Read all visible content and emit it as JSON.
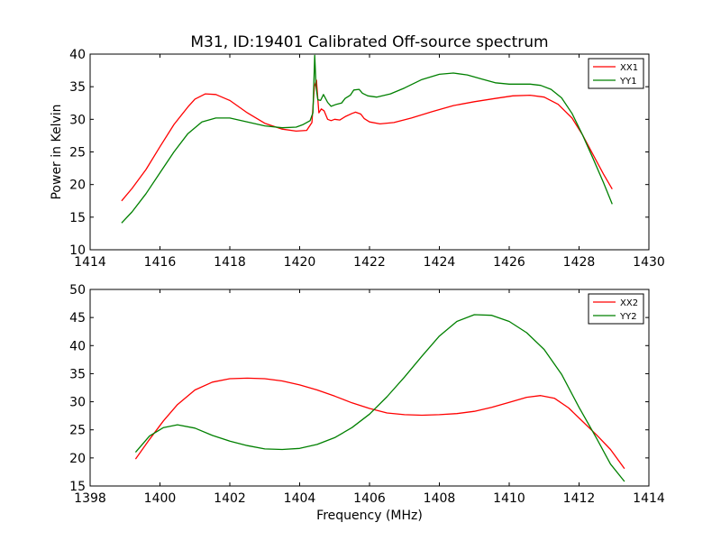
{
  "figure": {
    "title": "M31, ID:19401 Calibrated Off-source spectrum"
  },
  "chart_data": [
    {
      "type": "line",
      "title": "M31, ID:19401 Calibrated Off-source spectrum",
      "xlabel": "",
      "ylabel": "Power in Kelvin",
      "xlim": [
        1414,
        1430
      ],
      "ylim": [
        10,
        40
      ],
      "xticks": [
        1414,
        1416,
        1418,
        1420,
        1422,
        1424,
        1426,
        1428,
        1430
      ],
      "yticks": [
        10,
        15,
        20,
        25,
        30,
        35,
        40
      ],
      "grid": false,
      "legend": "top-right",
      "series": [
        {
          "name": "XX1",
          "color": "#ff0000",
          "points": [
            [
              1414.9,
              17.5
            ],
            [
              1415.2,
              19.4
            ],
            [
              1415.6,
              22.3
            ],
            [
              1416.0,
              25.8
            ],
            [
              1416.4,
              29.2
            ],
            [
              1416.8,
              31.9
            ],
            [
              1417.0,
              33.1
            ],
            [
              1417.3,
              33.9
            ],
            [
              1417.6,
              33.8
            ],
            [
              1418.0,
              32.9
            ],
            [
              1418.5,
              31.0
            ],
            [
              1419.0,
              29.4
            ],
            [
              1419.5,
              28.5
            ],
            [
              1419.9,
              28.2
            ],
            [
              1420.2,
              28.3
            ],
            [
              1420.35,
              29.5
            ],
            [
              1420.42,
              35.0
            ],
            [
              1420.48,
              36.0
            ],
            [
              1420.55,
              31.0
            ],
            [
              1420.62,
              31.6
            ],
            [
              1420.7,
              31.3
            ],
            [
              1420.8,
              30.0
            ],
            [
              1420.9,
              29.8
            ],
            [
              1421.0,
              30.0
            ],
            [
              1421.15,
              29.9
            ],
            [
              1421.3,
              30.4
            ],
            [
              1421.5,
              30.9
            ],
            [
              1421.6,
              31.1
            ],
            [
              1421.75,
              30.8
            ],
            [
              1421.85,
              30.1
            ],
            [
              1422.0,
              29.6
            ],
            [
              1422.3,
              29.3
            ],
            [
              1422.7,
              29.5
            ],
            [
              1423.2,
              30.2
            ],
            [
              1423.8,
              31.2
            ],
            [
              1424.4,
              32.1
            ],
            [
              1425.0,
              32.7
            ],
            [
              1425.6,
              33.2
            ],
            [
              1426.1,
              33.6
            ],
            [
              1426.6,
              33.7
            ],
            [
              1427.0,
              33.4
            ],
            [
              1427.4,
              32.3
            ],
            [
              1427.8,
              30.2
            ],
            [
              1428.1,
              27.6
            ],
            [
              1428.4,
              24.6
            ],
            [
              1428.7,
              21.6
            ],
            [
              1428.95,
              19.3
            ]
          ]
        },
        {
          "name": "YY1",
          "color": "#008000",
          "points": [
            [
              1414.9,
              14.1
            ],
            [
              1415.2,
              15.8
            ],
            [
              1415.6,
              18.6
            ],
            [
              1416.0,
              21.8
            ],
            [
              1416.4,
              25.0
            ],
            [
              1416.8,
              27.8
            ],
            [
              1417.2,
              29.6
            ],
            [
              1417.6,
              30.2
            ],
            [
              1418.0,
              30.2
            ],
            [
              1418.5,
              29.6
            ],
            [
              1419.0,
              29.0
            ],
            [
              1419.5,
              28.7
            ],
            [
              1419.9,
              28.8
            ],
            [
              1420.1,
              29.2
            ],
            [
              1420.3,
              29.8
            ],
            [
              1420.38,
              31.0
            ],
            [
              1420.43,
              39.8
            ],
            [
              1420.47,
              35.0
            ],
            [
              1420.52,
              33.0
            ],
            [
              1420.6,
              32.9
            ],
            [
              1420.68,
              33.8
            ],
            [
              1420.8,
              32.6
            ],
            [
              1420.9,
              32.0
            ],
            [
              1421.05,
              32.3
            ],
            [
              1421.2,
              32.5
            ],
            [
              1421.3,
              33.2
            ],
            [
              1421.45,
              33.7
            ],
            [
              1421.55,
              34.5
            ],
            [
              1421.7,
              34.6
            ],
            [
              1421.8,
              34.0
            ],
            [
              1421.95,
              33.6
            ],
            [
              1422.2,
              33.4
            ],
            [
              1422.6,
              33.9
            ],
            [
              1423.0,
              34.8
            ],
            [
              1423.5,
              36.1
            ],
            [
              1424.0,
              36.9
            ],
            [
              1424.4,
              37.1
            ],
            [
              1424.8,
              36.8
            ],
            [
              1425.2,
              36.2
            ],
            [
              1425.6,
              35.6
            ],
            [
              1426.0,
              35.4
            ],
            [
              1426.6,
              35.4
            ],
            [
              1426.9,
              35.2
            ],
            [
              1427.2,
              34.6
            ],
            [
              1427.5,
              33.3
            ],
            [
              1427.8,
              30.9
            ],
            [
              1428.1,
              27.6
            ],
            [
              1428.4,
              24.0
            ],
            [
              1428.7,
              20.3
            ],
            [
              1428.95,
              17.0
            ]
          ]
        }
      ]
    },
    {
      "type": "line",
      "title": "",
      "xlabel": "Frequency (MHz)",
      "ylabel": "",
      "xlim": [
        1398,
        1414
      ],
      "ylim": [
        15,
        50
      ],
      "xticks": [
        1398,
        1400,
        1402,
        1404,
        1406,
        1408,
        1410,
        1412,
        1414
      ],
      "yticks": [
        15,
        20,
        25,
        30,
        35,
        40,
        45,
        50
      ],
      "grid": false,
      "legend": "top-right",
      "series": [
        {
          "name": "XX2",
          "color": "#ff0000",
          "points": [
            [
              1399.3,
              19.8
            ],
            [
              1399.7,
              23.3
            ],
            [
              1400.1,
              26.6
            ],
            [
              1400.5,
              29.5
            ],
            [
              1401.0,
              32.1
            ],
            [
              1401.5,
              33.5
            ],
            [
              1402.0,
              34.1
            ],
            [
              1402.5,
              34.2
            ],
            [
              1403.0,
              34.1
            ],
            [
              1403.5,
              33.7
            ],
            [
              1404.0,
              33.0
            ],
            [
              1404.5,
              32.1
            ],
            [
              1405.0,
              31.0
            ],
            [
              1405.5,
              29.8
            ],
            [
              1406.0,
              28.8
            ],
            [
              1406.5,
              28.0
            ],
            [
              1407.0,
              27.7
            ],
            [
              1407.5,
              27.6
            ],
            [
              1408.0,
              27.7
            ],
            [
              1408.5,
              27.9
            ],
            [
              1409.0,
              28.3
            ],
            [
              1409.5,
              29.0
            ],
            [
              1410.0,
              29.9
            ],
            [
              1410.5,
              30.8
            ],
            [
              1410.9,
              31.1
            ],
            [
              1411.3,
              30.6
            ],
            [
              1411.7,
              28.9
            ],
            [
              1412.1,
              26.5
            ],
            [
              1412.5,
              24.1
            ],
            [
              1412.9,
              21.5
            ],
            [
              1413.3,
              18.1
            ]
          ]
        },
        {
          "name": "YY2",
          "color": "#008000",
          "points": [
            [
              1399.3,
              21.0
            ],
            [
              1399.7,
              23.9
            ],
            [
              1400.1,
              25.4
            ],
            [
              1400.5,
              25.9
            ],
            [
              1401.0,
              25.3
            ],
            [
              1401.5,
              24.0
            ],
            [
              1402.0,
              23.0
            ],
            [
              1402.5,
              22.2
            ],
            [
              1403.0,
              21.6
            ],
            [
              1403.5,
              21.5
            ],
            [
              1404.0,
              21.7
            ],
            [
              1404.5,
              22.4
            ],
            [
              1405.0,
              23.6
            ],
            [
              1405.5,
              25.4
            ],
            [
              1406.0,
              27.8
            ],
            [
              1406.5,
              30.9
            ],
            [
              1407.0,
              34.4
            ],
            [
              1407.5,
              38.1
            ],
            [
              1408.0,
              41.7
            ],
            [
              1408.5,
              44.3
            ],
            [
              1409.0,
              45.5
            ],
            [
              1409.5,
              45.4
            ],
            [
              1410.0,
              44.3
            ],
            [
              1410.5,
              42.3
            ],
            [
              1411.0,
              39.3
            ],
            [
              1411.5,
              34.9
            ],
            [
              1412.0,
              29.0
            ],
            [
              1412.5,
              23.5
            ],
            [
              1412.9,
              18.9
            ],
            [
              1413.3,
              15.8
            ]
          ]
        }
      ]
    }
  ]
}
